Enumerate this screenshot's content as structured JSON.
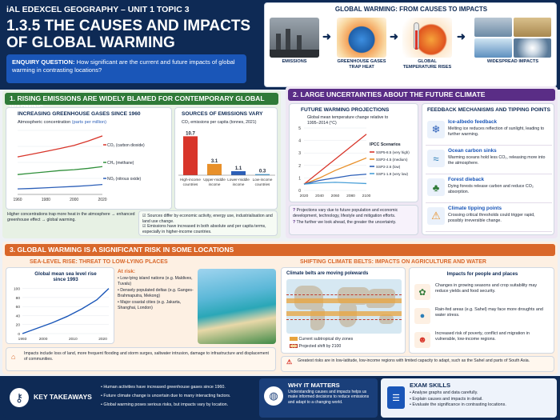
{
  "header": {
    "course": "iAL EDEXCEL GEOGRAPHY – UNIT 1 TOPIC 3",
    "title_line1": "1.3.5 THE CAUSES AND IMPACTS",
    "title_line2": "OF GLOBAL WARMING",
    "enquiry_label": "ENQUIRY QUESTION:",
    "enquiry_text": "How significant are the current and future impacts of global warming in contrasting locations?"
  },
  "flow": {
    "title": "GLOBAL WARMING: FROM CAUSES TO IMPACTS",
    "steps": [
      "EMISSIONS",
      "GREENHOUSE GASES TRAP HEAT",
      "GLOBAL TEMPERATURE RISES",
      "WIDESPREAD IMPACTS"
    ]
  },
  "s1": {
    "title": "1. RISING EMISSIONS ARE WIDELY BLAMED FOR CONTEMPORARY GLOBAL WARMING",
    "ghg": {
      "title": "INCREASING GREENHOUSE GASES SINCE 1960",
      "subtitle": "Atmospheric concentration",
      "unit": "(parts per million)",
      "legend": [
        "CO₂ (carbon dioxide)",
        "CH₄ (methane)",
        "NOₓ (nitrous oxide)"
      ],
      "xticks": [
        "1960",
        "1980",
        "2000",
        "2020"
      ]
    },
    "sources": {
      "title": "SOURCES OF EMISSIONS VARY",
      "subtitle": "CO₂ emissions per capita (tonnes, 2021)",
      "values_text": [
        "10.7",
        "3.1",
        "1.1",
        "0.3"
      ],
      "cats": [
        "High-income countries",
        "Upper-middle income",
        "Lower-middle income",
        "Low-income countries"
      ]
    },
    "note": "Higher concentrations trap more heat in the atmosphere → enhanced greenhouse effect → global warming.",
    "bullets": [
      "Sources differ by economic activity, energy use, industrialisation and land use change.",
      "Emissions have increased in both absolute and per capita terms, especially in higher-income countries."
    ]
  },
  "s2": {
    "title": "2. LARGE UNCERTAINTIES ABOUT THE FUTURE CLIMATE",
    "proj": {
      "title": "FUTURE WARMING PROJECTIONS",
      "subtitle": "Global mean temperature change relative to 1995–2014 (°C)",
      "legend_title": "IPCC Scenarios",
      "legend": [
        "SSP5-8.5 (very high)",
        "SSP2-4.5 (medium)",
        "SSP2-2.6 (low)",
        "SSP1-1.9 (very low)"
      ],
      "xticks": [
        "2020",
        "2040",
        "2060",
        "2080",
        "2100"
      ],
      "yticks": [
        "0",
        "1",
        "2",
        "3",
        "4",
        "5"
      ]
    },
    "q1": "Projections vary due to future population and economic development, technology, lifestyle and mitigation efforts.",
    "q2": "The further we look ahead, the greater the uncertainty.",
    "fb": {
      "title": "FEEDBACK MECHANISMS AND TIPPING POINTS",
      "items": [
        {
          "head": "Ice-albedo feedback",
          "text": "Melting ice reduces reflection of sunlight, leading to further warming."
        },
        {
          "head": "Ocean carbon sinks",
          "text": "Warming oceans hold less CO₂, releasing more into the atmosphere."
        },
        {
          "head": "Forest dieback",
          "text": "Dying forests release carbon and reduce CO₂ absorption."
        },
        {
          "head": "Climate tipping points",
          "text": "Crossing critical thresholds could trigger rapid, possibly irreversible change."
        }
      ]
    }
  },
  "s3": {
    "title": "3. GLOBAL WARMING IS A SIGNIFICANT RISK IN SOME LOCATIONS",
    "sea": {
      "title": "SEA-LEVEL RISE: THREAT TO LOW-LYING PLACES",
      "chart_title": "Global mean sea level rise since 1993",
      "xticks": [
        "1993",
        "2000",
        "2010",
        "2020"
      ],
      "yticks": [
        "0",
        "20",
        "40",
        "60",
        "80",
        "100"
      ],
      "risk_head": "At risk:",
      "risks": [
        "Low-lying island nations (e.g. Maldives, Tuvalu)",
        "Densely populated deltas (e.g. Ganges-Brahmaputra, Mekong)",
        "Major coastal cities (e.g. Jakarta, Shanghai, London)"
      ],
      "impacts": "Impacts include loss of land, more frequent flooding and storm surges, saltwater intrusion, damage to infrastructure and displacement of communities."
    },
    "belts": {
      "title": "SHIFTING CLIMATE BELTS: IMPACTS ON AGRICULTURE AND WATER",
      "map_title": "Climate belts are moving polewards",
      "legend": [
        "Current subtropical dry zones",
        "Projected shift by 2100"
      ],
      "impact_title": "Impacts for people and places",
      "impacts": [
        "Changes in growing seasons and crop suitability may reduce yields and food security.",
        "Rain-fed areas (e.g. Sahel) may face more droughts and water stress.",
        "Increased risk of poverty, conflict and migration in vulnerable, low-income regions."
      ],
      "note": "Greatest risks are in low-latitude, low-income regions with limited capacity to adapt, such as the Sahel and parts of South Asia."
    }
  },
  "footer": {
    "kt_title": "KEY TAKEAWAYS",
    "kt": [
      "Human activities have increased greenhouse gases since 1960.",
      "Future climate change is uncertain due to many interacting factors.",
      "Global warming poses serious risks, but impacts vary by location."
    ],
    "wm_title": "WHY IT MATTERS",
    "wm_text": "Understanding causes and impacts helps us make informed decisions to reduce emissions and adapt to a changing world.",
    "ex_title": "EXAM SKILLS",
    "ex": [
      "Analyse graphs and data carefully.",
      "Explain causes and impacts in detail.",
      "Evaluate the significance in contrasting locations."
    ]
  },
  "chart_data": [
    {
      "type": "line",
      "title": "INCREASING GREENHOUSE GASES SINCE 1960",
      "x": [
        1960,
        1970,
        1980,
        1990,
        2000,
        2010,
        2020
      ],
      "series": [
        {
          "name": "CO₂ (carbon dioxide)",
          "values": [
            320,
            332,
            345,
            358,
            372,
            392,
            415
          ]
        },
        {
          "name": "CH₄ (methane)",
          "values": [
            240,
            246,
            252,
            258,
            262,
            268,
            276
          ]
        },
        {
          "name": "NOₓ (nitrous oxide)",
          "values": [
            175,
            177,
            180,
            183,
            186,
            190,
            195
          ]
        }
      ],
      "xlabel": "",
      "ylabel": "",
      "color": [
        "#d8352a",
        "#2f8f3a",
        "#2c5fb8"
      ]
    },
    {
      "type": "bar",
      "title": "SOURCES OF EMISSIONS VARY",
      "categories": [
        "High-income countries",
        "Upper-middle income",
        "Lower-middle income",
        "Low-income countries"
      ],
      "values": [
        10.7,
        3.1,
        1.1,
        0.3
      ],
      "colors": [
        "#d8352a",
        "#e8902a",
        "#2c5fb8",
        "#4aa0d8"
      ]
    },
    {
      "type": "line",
      "title": "FUTURE WARMING PROJECTIONS",
      "x": [
        2020,
        2040,
        2060,
        2080,
        2100
      ],
      "series": [
        {
          "name": "SSP5-8.5 (very high)",
          "values": [
            0.5,
            1.5,
            2.5,
            3.5,
            4.5
          ]
        },
        {
          "name": "SSP2-4.5 (medium)",
          "values": [
            0.5,
            1.0,
            1.6,
            2.1,
            2.6
          ]
        },
        {
          "name": "SSP2-2.6 (low)",
          "values": [
            0.5,
            0.8,
            1.0,
            1.2,
            1.3
          ]
        },
        {
          "name": "SSP1-1.9 (very low)",
          "values": [
            0.5,
            0.6,
            0.65,
            0.6,
            0.55
          ]
        }
      ],
      "ylim": [
        0,
        5
      ],
      "colors": [
        "#d8352a",
        "#e8902a",
        "#2c5fb8",
        "#4aa0d8"
      ]
    },
    {
      "type": "line",
      "title": "Global mean sea level rise since 1993",
      "x": [
        1993,
        1998,
        2003,
        2008,
        2013,
        2018,
        2022
      ],
      "series": [
        {
          "values": [
            0,
            12,
            24,
            38,
            55,
            75,
            100
          ]
        }
      ],
      "ylim": [
        0,
        110
      ]
    }
  ]
}
